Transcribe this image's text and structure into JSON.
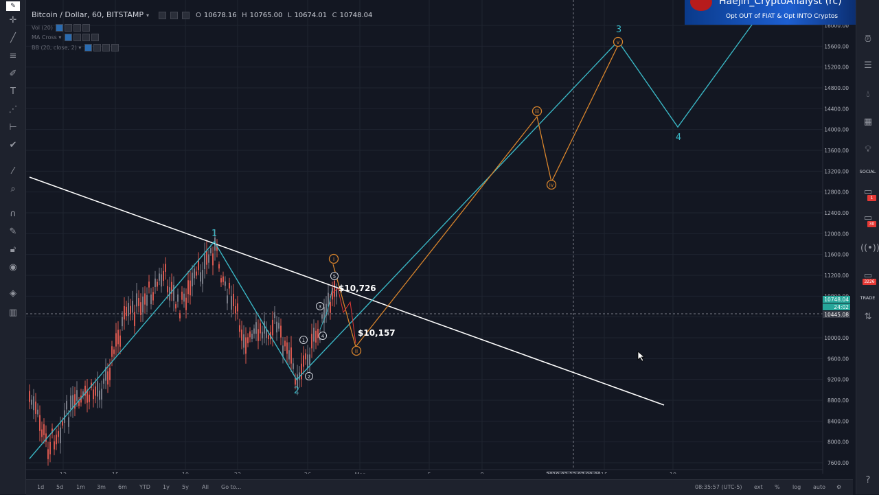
{
  "header": {
    "symbol": "Bitcoin / Dollar, 60, BITSTAMP",
    "o_label": "O",
    "o_val": "10678.16",
    "h_label": "H",
    "h_val": "10765.00",
    "l_label": "L",
    "l_val": "10674.01",
    "c_label": "C",
    "c_val": "10748.04"
  },
  "indicators": [
    "Vol (20)",
    "MA Cross",
    "BB (20, close, 2)"
  ],
  "banner": {
    "title": "Haejin_CryptoAnalyst (rc)",
    "subtitle": "Opt OUT of FIAT & Opt INTO Cryptos"
  },
  "price_axis": {
    "ticks": [
      "16000.00",
      "15600.00",
      "15200.00",
      "14800.00",
      "14400.00",
      "14000.00",
      "13600.00",
      "13200.00",
      "12800.00",
      "12400.00",
      "12000.00",
      "11600.00",
      "11200.00",
      "10800.00",
      "10000.00",
      "9600.00",
      "9200.00",
      "8800.00",
      "8400.00",
      "8000.00",
      "7600.00"
    ],
    "current_price": "10748.04",
    "countdown": "24:02",
    "crosshair_price": "10445.08"
  },
  "time_axis": {
    "ticks": [
      "12",
      "15",
      "19",
      "22",
      "26",
      "Mar",
      "5",
      "8",
      "15",
      "19"
    ],
    "crosshair_label": "2018-03-13 07:00:00"
  },
  "annotations": {
    "primary": [
      "1",
      "2",
      "3",
      "4"
    ],
    "minor": [
      "i",
      "ii",
      "iii",
      "iv",
      "v"
    ],
    "sub": [
      "1",
      "2",
      "3",
      "4",
      "5"
    ],
    "price_top": "$10,726",
    "price_bottom": "$10,157"
  },
  "bottom": {
    "ranges": [
      "1d",
      "5d",
      "1m",
      "3m",
      "6m",
      "YTD",
      "1y",
      "5y",
      "All"
    ],
    "goto": "Go to...",
    "clock": "08:35:57 (UTC-5)",
    "ext": "ext",
    "pct": "%",
    "log": "log",
    "auto": "auto"
  },
  "right_toolbar": {
    "social": "SOCIAL",
    "trade": "TRADE",
    "badge1": "1",
    "badge2": "30",
    "badge3": "3226"
  },
  "colors": {
    "bg": "#131722",
    "up": "#787b86",
    "down": "#d8584f",
    "wave": "#3ab7c5",
    "subwave": "#d9852c",
    "trend": "#ffffff"
  }
}
